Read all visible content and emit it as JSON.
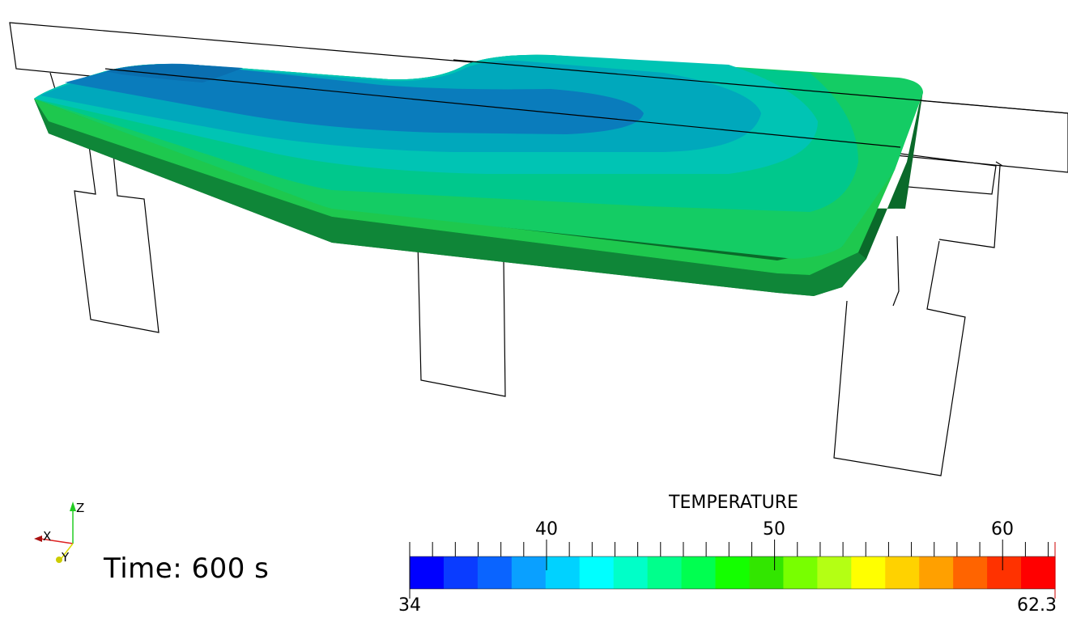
{
  "view": {
    "time_label": "Time:  600 s",
    "orientation_axes": {
      "z": "Z",
      "x": "X",
      "y": "Y"
    }
  },
  "colorbar": {
    "title": "TEMPERATURE",
    "min_label": "34",
    "max_label": "62.3",
    "major_ticks": [
      "40",
      "50",
      "60"
    ],
    "range": [
      34,
      62.3
    ],
    "colors": [
      "#0000ff",
      "#0a3cff",
      "#0a64ff",
      "#0aa0ff",
      "#00d2ff",
      "#00ffff",
      "#00ffc8",
      "#00ff8c",
      "#00ff50",
      "#14ff00",
      "#32e600",
      "#78ff00",
      "#b4ff14",
      "#ffff00",
      "#ffd200",
      "#ffa000",
      "#ff6400",
      "#ff3200",
      "#ff0000"
    ]
  },
  "surface_colors": {
    "dark_blue": "#0a78c0",
    "mid_blue": "#0a96c8",
    "cyan": "#00bcc8",
    "teal": "#00c8b4",
    "green_light": "#00d28c",
    "green": "#14cc64",
    "side_dark": "#0a6a2a"
  }
}
